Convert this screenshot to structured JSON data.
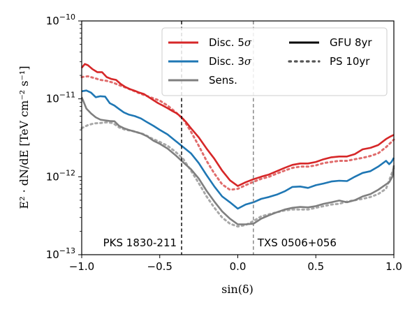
{
  "chart_data": {
    "type": "line",
    "xlabel": "sin(δ)",
    "ylabel": "E² · dN/dE [TeV cm⁻² s⁻¹]",
    "xlim": [
      -1.0,
      1.0
    ],
    "ylim": [
      1e-13,
      1e-10
    ],
    "yscale": "log",
    "grid": false,
    "legend_position": "top-right",
    "x_ticks": [
      {
        "value": -1.0,
        "label": "−1.0"
      },
      {
        "value": -0.5,
        "label": "−0.5"
      },
      {
        "value": 0.0,
        "label": "0.0"
      },
      {
        "value": 0.5,
        "label": "0.5"
      },
      {
        "value": 1.0,
        "label": "1.0"
      }
    ],
    "y_ticks": [
      {
        "value": 1e-13,
        "base": "10",
        "exp": "−13"
      },
      {
        "value": 1e-12,
        "base": "10",
        "exp": "−12"
      },
      {
        "value": 1e-11,
        "base": "10",
        "exp": "−11"
      },
      {
        "value": 1e-10,
        "base": "10",
        "exp": "−10"
      }
    ],
    "series": [
      {
        "name": "Disc. 5σ",
        "sample": "GFU 8yr",
        "color": "#d62728",
        "style": "solid",
        "x": [
          -1.0,
          -0.98,
          -0.96,
          -0.93,
          -0.9,
          -0.87,
          -0.84,
          -0.81,
          -0.78,
          -0.75,
          -0.72,
          -0.69,
          -0.66,
          -0.63,
          -0.6,
          -0.57,
          -0.54,
          -0.51,
          -0.48,
          -0.45,
          -0.42,
          -0.39,
          -0.36,
          -0.33,
          -0.3,
          -0.25,
          -0.2,
          -0.15,
          -0.1,
          -0.05,
          0.0,
          0.05,
          0.1,
          0.15,
          0.2,
          0.25,
          0.3,
          0.35,
          0.4,
          0.45,
          0.5,
          0.55,
          0.6,
          0.65,
          0.7,
          0.75,
          0.8,
          0.85,
          0.9,
          0.95,
          0.98,
          1.0
        ],
        "y": [
          2.5e-11,
          2.8e-11,
          2.7e-11,
          2.4e-11,
          2.2e-11,
          2.2e-11,
          1.9e-11,
          1.8e-11,
          1.75e-11,
          1.55e-11,
          1.42e-11,
          1.33e-11,
          1.27e-11,
          1.2e-11,
          1.15e-11,
          1.05e-11,
          9.6e-12,
          8.8e-12,
          8.2e-12,
          7.6e-12,
          7e-12,
          6.5e-12,
          5.8e-12,
          5e-12,
          4.2e-12,
          3.2e-12,
          2.3e-12,
          1.7e-12,
          1.2e-12,
          9e-13,
          7.6e-13,
          8.5e-13,
          9.3e-13,
          1e-12,
          1.07e-12,
          1.18e-12,
          1.3e-12,
          1.42e-12,
          1.48e-12,
          1.48e-12,
          1.55e-12,
          1.68e-12,
          1.78e-12,
          1.82e-12,
          1.82e-12,
          1.95e-12,
          2.25e-12,
          2.35e-12,
          2.55e-12,
          3.05e-12,
          3.3e-12,
          3.45e-12
        ]
      },
      {
        "name": "Disc. 3σ",
        "sample": "GFU 8yr",
        "color": "#1f77b4",
        "style": "solid",
        "x": [
          -1.0,
          -0.97,
          -0.94,
          -0.91,
          -0.88,
          -0.85,
          -0.82,
          -0.79,
          -0.76,
          -0.73,
          -0.7,
          -0.66,
          -0.62,
          -0.58,
          -0.54,
          -0.5,
          -0.45,
          -0.4,
          -0.36,
          -0.3,
          -0.25,
          -0.2,
          -0.15,
          -0.1,
          -0.05,
          0.0,
          0.05,
          0.1,
          0.15,
          0.2,
          0.25,
          0.3,
          0.35,
          0.4,
          0.45,
          0.5,
          0.55,
          0.6,
          0.65,
          0.7,
          0.75,
          0.8,
          0.85,
          0.9,
          0.95,
          0.97,
          0.985,
          1.0
        ],
        "y": [
          1.25e-11,
          1.28e-11,
          1.2e-11,
          1.05e-11,
          1.08e-11,
          1.07e-11,
          8.8e-12,
          8.2e-12,
          7.4e-12,
          6.7e-12,
          6.3e-12,
          6e-12,
          5.6e-12,
          5e-12,
          4.5e-12,
          4e-12,
          3.5e-12,
          2.9e-12,
          2.5e-12,
          2e-12,
          1.5e-12,
          1.05e-12,
          7.5e-13,
          5.6e-13,
          4.7e-13,
          3.9e-13,
          4.4e-13,
          4.7e-13,
          5.2e-13,
          5.5e-13,
          5.9e-13,
          6.5e-13,
          7.4e-13,
          7.5e-13,
          7.2e-13,
          7.8e-13,
          8.2e-13,
          8.7e-13,
          8.9e-13,
          8.8e-13,
          1e-12,
          1.12e-12,
          1.18e-12,
          1.35e-12,
          1.6e-12,
          1.45e-12,
          1.55e-12,
          1.75e-12
        ]
      },
      {
        "name": "Sens.",
        "sample": "GFU 8yr",
        "color": "#7f7f7f",
        "style": "solid",
        "x": [
          -1.0,
          -0.97,
          -0.94,
          -0.91,
          -0.88,
          -0.85,
          -0.82,
          -0.79,
          -0.76,
          -0.73,
          -0.7,
          -0.66,
          -0.62,
          -0.58,
          -0.54,
          -0.5,
          -0.45,
          -0.4,
          -0.36,
          -0.3,
          -0.25,
          -0.2,
          -0.15,
          -0.1,
          -0.05,
          0.0,
          0.05,
          0.1,
          0.15,
          0.2,
          0.25,
          0.3,
          0.35,
          0.4,
          0.45,
          0.5,
          0.55,
          0.6,
          0.65,
          0.7,
          0.75,
          0.8,
          0.85,
          0.9,
          0.95,
          0.97,
          0.99,
          1.0
        ],
        "y": [
          1.05e-11,
          7.5e-12,
          6.5e-12,
          5.8e-12,
          5.4e-12,
          5.3e-12,
          5.2e-12,
          5.15e-12,
          4.5e-12,
          4.2e-12,
          4e-12,
          3.8e-12,
          3.6e-12,
          3.3e-12,
          2.9e-12,
          2.65e-12,
          2.3e-12,
          1.9e-12,
          1.6e-12,
          1.25e-12,
          9.5e-13,
          6.6e-13,
          4.8e-13,
          3.6e-13,
          2.9e-13,
          2.45e-13,
          2.45e-13,
          2.5e-13,
          2.9e-13,
          3.2e-13,
          3.5e-13,
          3.8e-13,
          4e-13,
          4.1e-13,
          4.05e-13,
          4.2e-13,
          4.5e-13,
          4.7e-13,
          4.95e-13,
          4.7e-13,
          5e-13,
          5.6e-13,
          6e-13,
          6.8e-13,
          8e-13,
          8.5e-13,
          1e-12,
          1.4e-12
        ]
      },
      {
        "name": "",
        "sample": "PS 10yr",
        "color": "#e06c6c",
        "style": "dotted",
        "x": [
          -1.0,
          -0.96,
          -0.92,
          -0.88,
          -0.84,
          -0.8,
          -0.76,
          -0.72,
          -0.68,
          -0.64,
          -0.6,
          -0.55,
          -0.5,
          -0.45,
          -0.4,
          -0.35,
          -0.3,
          -0.25,
          -0.2,
          -0.15,
          -0.1,
          -0.05,
          0.0,
          0.05,
          0.1,
          0.15,
          0.2,
          0.25,
          0.3,
          0.35,
          0.4,
          0.45,
          0.5,
          0.55,
          0.6,
          0.65,
          0.7,
          0.75,
          0.8,
          0.85,
          0.9,
          0.95,
          1.0
        ],
        "y": [
          1.9e-11,
          1.95e-11,
          1.85e-11,
          1.75e-11,
          1.7e-11,
          1.62e-11,
          1.5e-11,
          1.4e-11,
          1.3e-11,
          1.2e-11,
          1.12e-11,
          1.03e-11,
          9.5e-12,
          8.2e-12,
          6.8e-12,
          5.5e-12,
          3.8e-12,
          2.5e-12,
          1.6e-12,
          1.1e-12,
          8e-13,
          6.8e-13,
          7e-13,
          7.8e-13,
          8.6e-13,
          9.4e-13,
          1e-12,
          1.1e-12,
          1.2e-12,
          1.3e-12,
          1.35e-12,
          1.35e-12,
          1.4e-12,
          1.5e-12,
          1.55e-12,
          1.6e-12,
          1.6e-12,
          1.68e-12,
          1.75e-12,
          1.85e-12,
          2e-12,
          2.4e-12,
          3e-12
        ]
      },
      {
        "name": "",
        "sample": "PS 10yr",
        "color": "#a8a8a8",
        "style": "dotted",
        "x": [
          -1.0,
          -0.96,
          -0.92,
          -0.88,
          -0.84,
          -0.8,
          -0.76,
          -0.72,
          -0.68,
          -0.64,
          -0.6,
          -0.55,
          -0.5,
          -0.45,
          -0.4,
          -0.35,
          -0.3,
          -0.25,
          -0.2,
          -0.15,
          -0.1,
          -0.05,
          0.0,
          0.05,
          0.1,
          0.15,
          0.2,
          0.25,
          0.3,
          0.35,
          0.4,
          0.45,
          0.5,
          0.55,
          0.6,
          0.65,
          0.7,
          0.75,
          0.8,
          0.85,
          0.9,
          0.95,
          1.0
        ],
        "y": [
          4.2e-12,
          4.6e-12,
          4.85e-12,
          4.9e-12,
          5e-12,
          4.9e-12,
          4.3e-12,
          4e-12,
          3.9e-12,
          3.7e-12,
          3.5e-12,
          3.1e-12,
          2.8e-12,
          2.5e-12,
          2.1e-12,
          1.7e-12,
          1.2e-12,
          8.3e-13,
          5.6e-13,
          4e-13,
          3e-13,
          2.5e-13,
          2.3e-13,
          2.4e-13,
          2.7e-13,
          3.1e-13,
          3.3e-13,
          3.5e-13,
          3.7e-13,
          3.8e-13,
          3.8e-13,
          3.8e-13,
          4e-13,
          4.2e-13,
          4.4e-13,
          4.5e-13,
          4.8e-13,
          5e-13,
          5.2e-13,
          5.5e-13,
          6e-13,
          7e-13,
          1.3e-12
        ]
      }
    ],
    "vlines": [
      {
        "x": -0.36,
        "color": "#000000",
        "style": "dashed",
        "label": "PKS 1830-211",
        "label_side": "left"
      },
      {
        "x": 0.1,
        "color": "#808080",
        "style": "dashed",
        "label": "TXS 0506+056",
        "label_side": "right"
      }
    ],
    "legend": {
      "left": [
        {
          "label_main": "Disc. 5",
          "label_sym": "σ",
          "color": "#d62728",
          "style": "solid"
        },
        {
          "label_main": "Disc. 3",
          "label_sym": "σ",
          "color": "#1f77b4",
          "style": "solid"
        },
        {
          "label_main": "Sens.",
          "label_sym": "",
          "color": "#7f7f7f",
          "style": "solid"
        }
      ],
      "right": [
        {
          "label_main": "GFU 8yr",
          "label_sym": "",
          "color": "#000000",
          "style": "solid"
        },
        {
          "label_main": "PS 10yr",
          "label_sym": "",
          "color": "#555555",
          "style": "dotted"
        }
      ]
    }
  }
}
